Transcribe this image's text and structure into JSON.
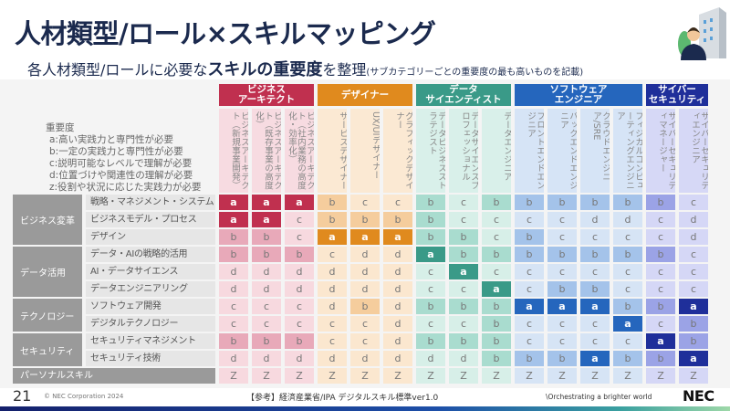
{
  "header": {
    "title": "人材類型/ロール×スキルマッピング",
    "subtitle_pre": "各人材類型/ロールに必要な",
    "subtitle_bold": "スキルの重要度",
    "subtitle_post": "を整理",
    "subtitle_note": "(サブカテゴリーごとの重要度の最も高いものを記載)"
  },
  "legend": {
    "title": "重要度",
    "items": [
      "a:高い実践力と専門性が必要",
      "b:一定の実践力と専門性が必要",
      "c:説明可能なレベルで理解が必要",
      "d:位置づけや関連性の理解が必要",
      "z:役割や状況に応じた実践力が必要"
    ]
  },
  "groups": [
    {
      "label": "ビジネス\nアーキテクト",
      "span": 3,
      "colors": {
        "a": "#c0304f",
        "b": "#e8a9b9",
        "c": "#f7d9df",
        "head": "#f7dbe1"
      }
    },
    {
      "label": "デザイナー",
      "span": 3,
      "colors": {
        "a": "#e08a1e",
        "b": "#f5cd9d",
        "c": "#fbe7cf",
        "head": "#fbe9d3"
      }
    },
    {
      "label": "データ\nサイエンティスト",
      "span": 3,
      "colors": {
        "a": "#3a9a88",
        "b": "#a9dccf",
        "c": "#d7efe8",
        "head": "#d9f0ea"
      }
    },
    {
      "label": "ソフトウェア\nエンジニア",
      "span": 4,
      "colors": {
        "a": "#2566bd",
        "b": "#a4c3ea",
        "c": "#d6e4f5",
        "head": "#d6e4f6"
      }
    },
    {
      "label": "サイバー\nセキュリティ",
      "span": 2,
      "colors": {
        "a": "#1f2f9a",
        "b": "#9ba3e6",
        "c": "#d5d7f6",
        "head": "#d6d8f6"
      }
    }
  ],
  "roles": [
    "ビジネスアーキテクト（新規事業開発）",
    "ビジネスアーキテクト（既存事業の高度化）",
    "ビジネスアーキテクト（社内業務の高度化・効率化）",
    "サービスデザイナー",
    "UX/UIデザイナー",
    "グラフィックデザイナー",
    "データビジネスストラテジスト",
    "データサイエンスプロフェッショナル",
    "データエンジニア",
    "フロントエンドエンジニア",
    "バックエンドエンジニア",
    "クラウドエンジニア/SRE",
    "フィジカルコンピューティングエンジニア",
    "サイバーセキュリティマネージャー",
    "サイバーセキュリティエンジニア"
  ],
  "categories": [
    {
      "label": "ビジネス変革",
      "rows": [
        {
          "label": "戦略・マネジメント・システム",
          "values": [
            "a",
            "a",
            "a",
            "b",
            "c",
            "c",
            "b",
            "c",
            "b",
            "b",
            "b",
            "b",
            "b",
            "b",
            "c"
          ]
        },
        {
          "label": "ビジネスモデル・プロセス",
          "values": [
            "a",
            "a",
            "c",
            "b",
            "b",
            "b",
            "b",
            "c",
            "c",
            "c",
            "c",
            "d",
            "d",
            "c",
            "d"
          ]
        },
        {
          "label": "デザイン",
          "values": [
            "b",
            "b",
            "c",
            "a",
            "a",
            "a",
            "b",
            "b",
            "c",
            "b",
            "c",
            "c",
            "c",
            "c",
            "d"
          ]
        }
      ]
    },
    {
      "label": "データ活用",
      "rows": [
        {
          "label": "データ・AIの戦略的活用",
          "values": [
            "b",
            "b",
            "b",
            "c",
            "d",
            "d",
            "a",
            "b",
            "b",
            "b",
            "b",
            "b",
            "b",
            "b",
            "c"
          ]
        },
        {
          "label": "AI・データサイエンス",
          "values": [
            "d",
            "d",
            "d",
            "d",
            "d",
            "d",
            "c",
            "a",
            "c",
            "c",
            "c",
            "c",
            "c",
            "c",
            "c"
          ]
        },
        {
          "label": "データエンジニアリング",
          "values": [
            "d",
            "d",
            "d",
            "d",
            "d",
            "d",
            "c",
            "c",
            "a",
            "c",
            "b",
            "b",
            "c",
            "c",
            "c"
          ]
        }
      ]
    },
    {
      "label": "テクノロジー",
      "rows": [
        {
          "label": "ソフトウェア開発",
          "values": [
            "c",
            "c",
            "c",
            "d",
            "b",
            "d",
            "b",
            "b",
            "b",
            "a",
            "a",
            "a",
            "b",
            "b",
            "a"
          ]
        },
        {
          "label": "デジタルテクノロジー",
          "values": [
            "c",
            "c",
            "c",
            "c",
            "c",
            "d",
            "c",
            "c",
            "b",
            "c",
            "c",
            "c",
            "a",
            "c",
            "b"
          ]
        }
      ]
    },
    {
      "label": "セキュリティ",
      "rows": [
        {
          "label": "セキュリティマネジメント",
          "values": [
            "b",
            "b",
            "b",
            "c",
            "c",
            "d",
            "b",
            "b",
            "b",
            "c",
            "c",
            "c",
            "c",
            "a",
            "b"
          ]
        },
        {
          "label": "セキュリティ技術",
          "values": [
            "d",
            "d",
            "d",
            "d",
            "d",
            "d",
            "d",
            "d",
            "b",
            "b",
            "b",
            "a",
            "b",
            "b",
            "a"
          ]
        }
      ]
    }
  ],
  "personal": {
    "label": "パーソナルスキル",
    "values": [
      "Z",
      "Z",
      "Z",
      "Z",
      "Z",
      "Z",
      "Z",
      "Z",
      "Z",
      "Z",
      "Z",
      "Z",
      "Z",
      "Z",
      "Z"
    ]
  },
  "footer": {
    "page": "21",
    "copyright": "© NEC Corporation 2024",
    "reference": "【参考】経済産業省/IPA デジタルスキル標準ver1.0",
    "tagline": "\\Orchestrating a brighter world",
    "logo": "NEC"
  }
}
